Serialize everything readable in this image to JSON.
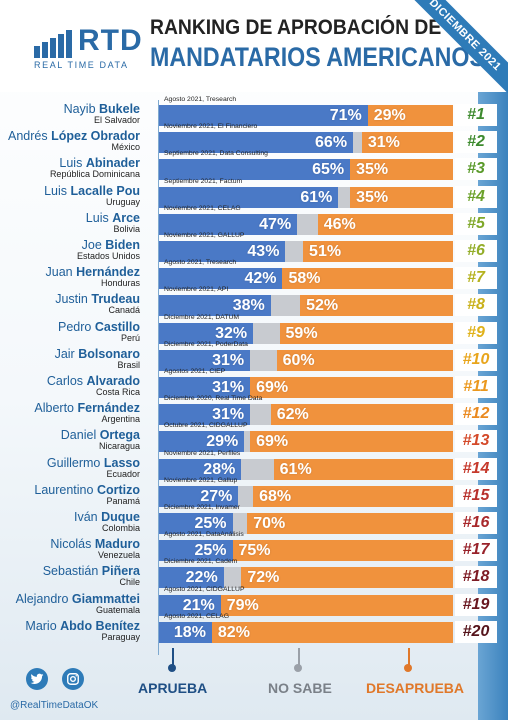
{
  "header": {
    "logo_word": "RTD",
    "logo_sub": "REAL TIME DATA",
    "title_line1": "RANKING DE APROBACIÓN DE",
    "title_line2": "MANDATARIOS AMERICANOS",
    "ribbon": "DICIEMBRE 2021"
  },
  "colors": {
    "aprueba": "#4a79c6",
    "no_sabe": "#c8cbd0",
    "desaprueba": "#f0923d",
    "brand": "#2a6aa6"
  },
  "legend": {
    "aprueba": "APRUEBA",
    "no_sabe": "NO SABE",
    "desaprueba": "DESAPRUEBA"
  },
  "social": {
    "twitter_icon": "twitter-icon",
    "instagram_icon": "instagram-icon",
    "handle": "@RealTimeDataOK"
  },
  "chart_data": {
    "type": "bar",
    "title": "RANKING DE APROBACIÓN DE MANDATARIOS AMERICANOS",
    "series_names": [
      "APRUEBA",
      "NO SABE",
      "DESAPRUEBA"
    ],
    "rows": [
      {
        "first": "Nayib",
        "last": "Bukele",
        "country": "El Salvador",
        "source": "Agosto 2021, Tresearch",
        "approve": 71,
        "disapprove": 29,
        "approve_label": "71%",
        "disapprove_label": "29%",
        "rank": "#1",
        "rank_color": "#3d8a2e"
      },
      {
        "first": "Andrés",
        "last": "López Obrador",
        "country": "México",
        "source": "Noviembre 2021, El Financiero",
        "approve": 66,
        "disapprove": 31,
        "approve_label": "66%",
        "disapprove_label": "31%",
        "rank": "#2",
        "rank_color": "#3d8a2e"
      },
      {
        "first": "Luis",
        "last": "Abinader",
        "country": "República Dominicana",
        "source": "Septiembre 2021, Data Consulting",
        "approve": 65,
        "disapprove": 35,
        "approve_label": "65%",
        "disapprove_label": "35%",
        "rank": "#3",
        "rank_color": "#5a9a2a"
      },
      {
        "first": "Luis",
        "last": "Lacalle  Pou",
        "country": "Uruguay",
        "source": "Septiembre 2021, Factum",
        "approve": 61,
        "disapprove": 35,
        "approve_label": "61%",
        "disapprove_label": "35%",
        "rank": "#4",
        "rank_color": "#6ba12a"
      },
      {
        "first": "Luis",
        "last": "Arce",
        "country": "Bolivia",
        "source": "Noviembre 2021, CELAG",
        "approve": 47,
        "disapprove": 46,
        "approve_label": "47%",
        "disapprove_label": "46%",
        "rank": "#5",
        "rank_color": "#80a82a"
      },
      {
        "first": "Joe",
        "last": "Biden",
        "country": "Estados Unidos",
        "source": "Noviembre 2021, GALLUP",
        "approve": 43,
        "disapprove": 51,
        "approve_label": "43%",
        "disapprove_label": "51%",
        "rank": "#6",
        "rank_color": "#93ad28"
      },
      {
        "first": "Juan",
        "last": "Hernández",
        "country": "Honduras",
        "source": "Agosto 2021, Tresearch",
        "approve": 42,
        "disapprove": 58,
        "approve_label": "42%",
        "disapprove_label": "58%",
        "rank": "#7",
        "rank_color": "#b5b21f"
      },
      {
        "first": "Justin",
        "last": "Trudeau",
        "country": "Canadá",
        "source": "Noviembre 2021, API",
        "approve": 38,
        "disapprove": 52,
        "approve_label": "38%",
        "disapprove_label": "52%",
        "rank": "#8",
        "rank_color": "#c9b11a"
      },
      {
        "first": "Pedro",
        "last": "Castillo",
        "country": "Perú",
        "source": "Diciembre 2021, DATUM",
        "approve": 32,
        "disapprove": 59,
        "approve_label": "32%",
        "disapprove_label": "59%",
        "rank": "#9",
        "rank_color": "#e0b21a"
      },
      {
        "first": "Jair",
        "last": "Bolsonaro",
        "country": "Brasil",
        "source": "Diciembre 2021, PoderData",
        "approve": 31,
        "disapprove": 60,
        "approve_label": "31%",
        "disapprove_label": "60%",
        "rank": "#10",
        "rank_color": "#e8a51c"
      },
      {
        "first": "Carlos",
        "last": "Alvarado",
        "country": "Costa Rica",
        "source": "Agostos 2021, CIEP",
        "approve": 31,
        "disapprove": 69,
        "approve_label": "31%",
        "disapprove_label": "69%",
        "rank": "#11",
        "rank_color": "#eb981e"
      },
      {
        "first": "Alberto",
        "last": "Fernández",
        "country": "Argentina",
        "source": "Diciembre 2020, Real Time Data",
        "approve": 31,
        "disapprove": 62,
        "approve_label": "31%",
        "disapprove_label": "62%",
        "rank": "#12",
        "rank_color": "#ea8a20"
      },
      {
        "first": "Daniel",
        "last": "Ortega",
        "country": "Nicaragua",
        "source": "Octubre 2021, CIDGALLUP",
        "approve": 29,
        "disapprove": 69,
        "approve_label": "29%",
        "disapprove_label": "69%",
        "rank": "#13",
        "rank_color": "#d44a2a"
      },
      {
        "first": "Guillermo",
        "last": "Lasso",
        "country": "Ecuador",
        "source": "Noviembre 2021, Perfiles",
        "approve": 28,
        "disapprove": 61,
        "approve_label": "28%",
        "disapprove_label": "61%",
        "rank": "#14",
        "rank_color": "#c63a2c"
      },
      {
        "first": "Laurentino",
        "last": "Cortizo",
        "country": "Panamá",
        "source": "Noviembre 2021, Gallup",
        "approve": 27,
        "disapprove": 68,
        "approve_label": "27%",
        "disapprove_label": "68%",
        "rank": "#15",
        "rank_color": "#b8302c"
      },
      {
        "first": "Iván",
        "last": "Duque",
        "country": "Colombia",
        "source": "Diciembre 2021, Invamer",
        "approve": 25,
        "disapprove": 70,
        "approve_label": "25%",
        "disapprove_label": "70%",
        "rank": "#16",
        "rank_color": "#a8282b"
      },
      {
        "first": "Nicolás",
        "last": "Maduro",
        "country": "Venezuela",
        "source": "Agosto 2021, DataAnálisis",
        "approve": 25,
        "disapprove": 75,
        "approve_label": "25%",
        "disapprove_label": "75%",
        "rank": "#17",
        "rank_color": "#98222a"
      },
      {
        "first": "Sebastián",
        "last": "Piñera",
        "country": "Chile",
        "source": "Diciembre 2021, Cadem",
        "approve": 22,
        "disapprove": 72,
        "approve_label": "22%",
        "disapprove_label": "72%",
        "rank": "#18",
        "rank_color": "#7e1c25"
      },
      {
        "first": "Alejandro",
        "last": "Giammattei",
        "country": "Guatemala",
        "source": "Agosto 2021, CIDGALLUP",
        "approve": 21,
        "disapprove": 79,
        "approve_label": "21%",
        "disapprove_label": "79%",
        "rank": "#19",
        "rank_color": "#6a1820"
      },
      {
        "first": "Mario",
        "last": "Abdo  Benítez",
        "country": "Paraguay",
        "source": "Agosto 2021, CELAG",
        "approve": 18,
        "disapprove": 82,
        "approve_label": "18%",
        "disapprove_label": "82%",
        "rank": "#20",
        "rank_color": "#55141b"
      }
    ]
  }
}
